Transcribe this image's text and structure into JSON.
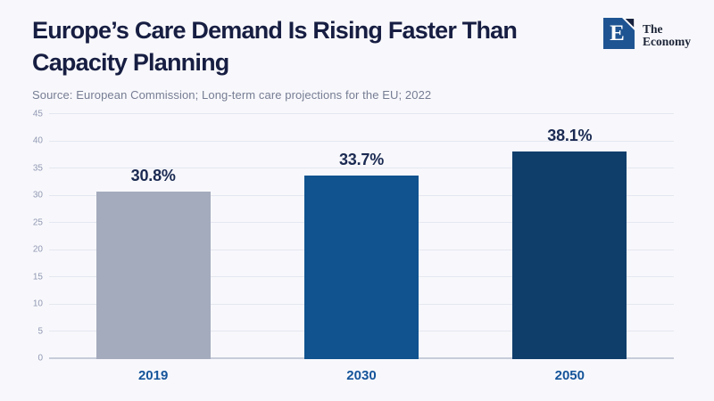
{
  "page": {
    "background": "#f8f8fc"
  },
  "header": {
    "title_line1": "Europe’s Care Demand Is Rising Faster Than",
    "title_line2": "Capacity Planning",
    "title_color": "#171e42"
  },
  "logo": {
    "mark": "E",
    "name_line1": "The",
    "name_line2": "Economy",
    "square_color": "#1f5492",
    "triangle_color": "#17223e"
  },
  "source": {
    "text": "Source: European Commission; Long-term care projections for the EU; 2022"
  },
  "chart_data": {
    "type": "bar",
    "title": "Europe’s Care Demand Is Rising Faster Than Capacity Planning",
    "categories": [
      "2019",
      "2030",
      "2050"
    ],
    "values": [
      30.8,
      33.7,
      38.1
    ],
    "value_labels": [
      "30.8%",
      "33.7%",
      "38.1%"
    ],
    "bar_colors": [
      "#a4abbd",
      "#10538f",
      "#103e6b"
    ],
    "value_label_color": "#1b2a52",
    "category_label_color": "#15549a",
    "xlabel": "",
    "ylabel": "",
    "ylim": [
      0,
      45
    ],
    "yticks": [
      0,
      5,
      10,
      15,
      20,
      25,
      30,
      35,
      40,
      45
    ],
    "grid": true,
    "gridline_color": "#e4e7f0",
    "axis_line_color": "#c7ccd9",
    "tick_label_color": "#9199b3",
    "legend": false
  }
}
